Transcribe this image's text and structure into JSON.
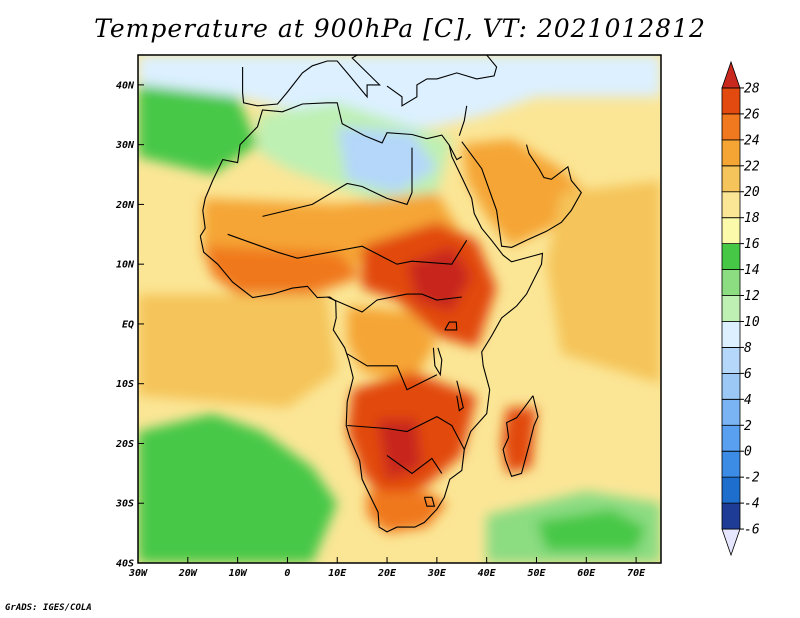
{
  "title": "Temperature at 900hPa [C], VT: 2021012812",
  "credit": "GrADS: IGES/COLA",
  "map": {
    "lon_range": [
      -30,
      75
    ],
    "lat_range": [
      -40,
      45
    ],
    "lon_ticks": [
      {
        "value": -30,
        "label": "30W"
      },
      {
        "value": -20,
        "label": "20W"
      },
      {
        "value": -10,
        "label": "10W"
      },
      {
        "value": 0,
        "label": "0"
      },
      {
        "value": 10,
        "label": "10E"
      },
      {
        "value": 20,
        "label": "20E"
      },
      {
        "value": 30,
        "label": "30E"
      },
      {
        "value": 40,
        "label": "40E"
      },
      {
        "value": 50,
        "label": "50E"
      },
      {
        "value": 60,
        "label": "60E"
      },
      {
        "value": 70,
        "label": "70E"
      }
    ],
    "lat_ticks": [
      {
        "value": 40,
        "label": "40N"
      },
      {
        "value": 30,
        "label": "30N"
      },
      {
        "value": 20,
        "label": "20N"
      },
      {
        "value": 10,
        "label": "10N"
      },
      {
        "value": 0,
        "label": "EQ"
      },
      {
        "value": -10,
        "label": "10S"
      },
      {
        "value": -20,
        "label": "20S"
      },
      {
        "value": -30,
        "label": "30S"
      },
      {
        "value": -40,
        "label": "40S"
      }
    ],
    "regions": [
      {
        "name": "europe-med",
        "level": 8,
        "poly": [
          [
            -30,
            45
          ],
          [
            75,
            45
          ],
          [
            75,
            38
          ],
          [
            50,
            38
          ],
          [
            40,
            35
          ],
          [
            30,
            33
          ],
          [
            15,
            32
          ],
          [
            0,
            36
          ],
          [
            -10,
            38
          ],
          [
            -30,
            40
          ]
        ]
      },
      {
        "name": "north-africa",
        "level": 10,
        "poly": [
          [
            -6,
            35
          ],
          [
            10,
            37
          ],
          [
            25,
            33
          ],
          [
            33,
            31
          ],
          [
            30,
            22
          ],
          [
            20,
            20
          ],
          [
            10,
            23
          ],
          [
            0,
            26
          ],
          [
            -6,
            29
          ]
        ]
      },
      {
        "name": "sahara-cold",
        "level": 6,
        "poly": [
          [
            10,
            33
          ],
          [
            25,
            32
          ],
          [
            30,
            26
          ],
          [
            22,
            22
          ],
          [
            12,
            24
          ]
        ]
      },
      {
        "name": "atlantic-north",
        "level": 14,
        "poly": [
          [
            -30,
            40
          ],
          [
            -10,
            38
          ],
          [
            -6,
            30
          ],
          [
            -15,
            25
          ],
          [
            -30,
            28
          ]
        ]
      },
      {
        "name": "arabia",
        "level": 22,
        "poly": [
          [
            35,
            30
          ],
          [
            45,
            31
          ],
          [
            55,
            26
          ],
          [
            60,
            22
          ],
          [
            55,
            17
          ],
          [
            45,
            13
          ],
          [
            40,
            18
          ],
          [
            36,
            24
          ]
        ]
      },
      {
        "name": "india-ocean-east",
        "level": 20,
        "poly": [
          [
            55,
            22
          ],
          [
            75,
            24
          ],
          [
            75,
            -10
          ],
          [
            55,
            -5
          ],
          [
            52,
            10
          ]
        ]
      },
      {
        "name": "sahel",
        "level": 22,
        "poly": [
          [
            -17,
            21
          ],
          [
            10,
            20
          ],
          [
            30,
            22
          ],
          [
            35,
            15
          ],
          [
            30,
            10
          ],
          [
            15,
            10
          ],
          [
            0,
            8
          ],
          [
            -12,
            7
          ],
          [
            -17,
            12
          ]
        ]
      },
      {
        "name": "central-hot",
        "level": 26,
        "poly": [
          [
            15,
            13
          ],
          [
            30,
            17
          ],
          [
            38,
            14
          ],
          [
            42,
            6
          ],
          [
            38,
            -4
          ],
          [
            30,
            -2
          ],
          [
            22,
            4
          ],
          [
            15,
            6
          ]
        ]
      },
      {
        "name": "central-core",
        "level": 28,
        "poly": [
          [
            24,
            10
          ],
          [
            33,
            13
          ],
          [
            37,
            8
          ],
          [
            33,
            2
          ],
          [
            26,
            4
          ]
        ]
      },
      {
        "name": "congo",
        "level": 22,
        "poly": [
          [
            12,
            3
          ],
          [
            25,
            2
          ],
          [
            30,
            -3
          ],
          [
            25,
            -10
          ],
          [
            15,
            -8
          ],
          [
            12,
            -3
          ]
        ]
      },
      {
        "name": "south-hot",
        "level": 26,
        "poly": [
          [
            13,
            -11
          ],
          [
            25,
            -8
          ],
          [
            38,
            -12
          ],
          [
            35,
            -22
          ],
          [
            28,
            -27
          ],
          [
            20,
            -30
          ],
          [
            15,
            -25
          ],
          [
            12,
            -18
          ]
        ]
      },
      {
        "name": "south-core",
        "level": 28,
        "poly": [
          [
            18,
            -16
          ],
          [
            26,
            -16
          ],
          [
            27,
            -24
          ],
          [
            20,
            -26
          ]
        ]
      },
      {
        "name": "south-cape",
        "level": 24,
        "poly": [
          [
            16,
            -28
          ],
          [
            28,
            -28
          ],
          [
            32,
            -30
          ],
          [
            28,
            -34
          ],
          [
            20,
            -35
          ],
          [
            16,
            -32
          ]
        ]
      },
      {
        "name": "madagascar",
        "level": 26,
        "poly": [
          [
            44,
            -14
          ],
          [
            50,
            -14
          ],
          [
            49,
            -24
          ],
          [
            44,
            -25
          ],
          [
            43,
            -20
          ]
        ]
      },
      {
        "name": "atlantic-south",
        "level": 14,
        "poly": [
          [
            -30,
            -18
          ],
          [
            -15,
            -15
          ],
          [
            -5,
            -18
          ],
          [
            5,
            -24
          ],
          [
            10,
            -30
          ],
          [
            5,
            -40
          ],
          [
            -30,
            -40
          ]
        ]
      },
      {
        "name": "ocean-south-green",
        "level": 12,
        "poly": [
          [
            40,
            -32
          ],
          [
            60,
            -28
          ],
          [
            75,
            -30
          ],
          [
            75,
            -40
          ],
          [
            40,
            -40
          ]
        ]
      },
      {
        "name": "ocean-south-deep",
        "level": 14,
        "poly": [
          [
            50,
            -33
          ],
          [
            65,
            -31
          ],
          [
            72,
            -34
          ],
          [
            70,
            -38
          ],
          [
            52,
            -38
          ]
        ]
      },
      {
        "name": "equator-ocean",
        "level": 20,
        "poly": [
          [
            -30,
            5
          ],
          [
            8,
            5
          ],
          [
            10,
            -8
          ],
          [
            0,
            -14
          ],
          [
            -30,
            -12
          ]
        ]
      },
      {
        "name": "west-africa-hot",
        "level": 24,
        "poly": [
          [
            -17,
            13
          ],
          [
            10,
            12
          ],
          [
            15,
            8
          ],
          [
            5,
            5
          ],
          [
            -10,
            5
          ],
          [
            -15,
            8
          ]
        ]
      }
    ]
  },
  "colorbar": {
    "levels": [
      -6,
      -4,
      -2,
      0,
      2,
      4,
      6,
      8,
      10,
      12,
      14,
      16,
      18,
      20,
      22,
      24,
      26,
      28
    ],
    "labels": [
      "-6",
      "-4",
      "-2",
      "0",
      "2",
      "4",
      "6",
      "8",
      "10",
      "12",
      "14",
      "16",
      "18",
      "20",
      "22",
      "24",
      "26",
      "28"
    ],
    "colors": [
      "#e6e6ff",
      "#1e3c96",
      "#1e6ecd",
      "#3c8ce6",
      "#5aa0f0",
      "#7ab4f5",
      "#9bc8f5",
      "#b4d7fa",
      "#dcf0ff",
      "#bef0b4",
      "#8cdc82",
      "#46c846",
      "#fafaaa",
      "#fbe696",
      "#f5c45a",
      "#f5a534",
      "#f0781e",
      "#e24a0f",
      "#c8281e"
    ]
  }
}
